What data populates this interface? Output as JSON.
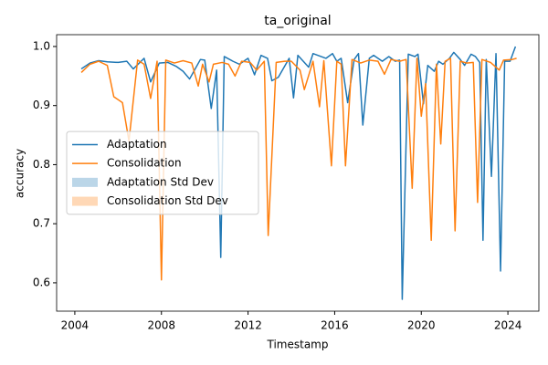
{
  "chart_data": {
    "type": "line",
    "title": "ta_original",
    "x_label": "Timestamp",
    "y_label": "accuracy",
    "xlim": [
      2003.16,
      2025.43
    ],
    "ylim": [
      0.552,
      1.02
    ],
    "xticks": [
      2004,
      2008,
      2012,
      2016,
      2020,
      2024
    ],
    "yticks": [
      0.6,
      0.7,
      0.8,
      0.9,
      {
        "value": 1,
        "label": "1.0"
      }
    ],
    "legend": "center left",
    "series": [
      {
        "name": "Adaptation",
        "color": "#1f77b4",
        "x": [
          2004.3,
          2004.7,
          2005.1,
          2005.5,
          2006.0,
          2006.4,
          2006.7,
          2007.2,
          2007.5,
          2007.9,
          2008.3,
          2008.7,
          2009.0,
          2009.3,
          2009.8,
          2010.0,
          2010.3,
          2010.55,
          2010.74,
          2010.9,
          2011.3,
          2011.6,
          2012.0,
          2012.3,
          2012.6,
          2012.9,
          2013.1,
          2013.4,
          2013.9,
          2014.1,
          2014.3,
          2014.8,
          2015.0,
          2015.6,
          2015.9,
          2016.1,
          2016.3,
          2016.6,
          2016.9,
          2017.1,
          2017.3,
          2017.6,
          2017.8,
          2018.2,
          2018.5,
          2018.8,
          2019.0,
          2019.12,
          2019.4,
          2019.7,
          2019.85,
          2020.1,
          2020.3,
          2020.6,
          2020.8,
          2021.0,
          2021.3,
          2021.5,
          2021.8,
          2022.0,
          2022.3,
          2022.5,
          2022.7,
          2022.85,
          2023.0,
          2023.24,
          2023.45,
          2023.66,
          2023.85,
          2024.1,
          2024.35
        ],
        "values": [
          0.962,
          0.972,
          0.976,
          0.974,
          0.973,
          0.975,
          0.962,
          0.98,
          0.94,
          0.972,
          0.973,
          0.966,
          0.958,
          0.945,
          0.978,
          0.977,
          0.895,
          0.96,
          0.643,
          0.983,
          0.975,
          0.97,
          0.98,
          0.952,
          0.985,
          0.98,
          0.942,
          0.948,
          0.98,
          0.913,
          0.985,
          0.965,
          0.988,
          0.98,
          0.988,
          0.975,
          0.98,
          0.905,
          0.978,
          0.988,
          0.867,
          0.98,
          0.985,
          0.975,
          0.983,
          0.975,
          0.977,
          0.572,
          0.987,
          0.983,
          0.987,
          0.903,
          0.968,
          0.958,
          0.975,
          0.97,
          0.98,
          0.99,
          0.978,
          0.968,
          0.987,
          0.983,
          0.973,
          0.672,
          0.978,
          0.78,
          0.988,
          0.62,
          0.975,
          0.975,
          1.0
        ]
      },
      {
        "name": "Consolidation",
        "color": "#ff7f0e",
        "x": [
          2004.3,
          2004.7,
          2005.1,
          2005.5,
          2005.8,
          2006.2,
          2006.5,
          2006.9,
          2007.2,
          2007.5,
          2007.8,
          2008.0,
          2008.2,
          2008.6,
          2009.0,
          2009.4,
          2009.7,
          2009.9,
          2010.2,
          2010.4,
          2010.8,
          2011.1,
          2011.4,
          2011.7,
          2012.1,
          2012.4,
          2012.75,
          2012.93,
          2013.3,
          2013.7,
          2014.0,
          2014.4,
          2014.6,
          2015.0,
          2015.3,
          2015.5,
          2015.85,
          2016.1,
          2016.3,
          2016.5,
          2016.8,
          2017.2,
          2017.6,
          2018.0,
          2018.3,
          2018.6,
          2019.0,
          2019.3,
          2019.58,
          2019.8,
          2020.0,
          2020.2,
          2020.46,
          2020.7,
          2020.9,
          2021.1,
          2021.35,
          2021.56,
          2021.8,
          2022.1,
          2022.4,
          2022.6,
          2022.8,
          2023.2,
          2023.6,
          2023.8,
          2024.2,
          2024.4
        ],
        "values": [
          0.956,
          0.97,
          0.975,
          0.968,
          0.915,
          0.905,
          0.84,
          0.977,
          0.97,
          0.912,
          0.975,
          0.605,
          0.977,
          0.972,
          0.976,
          0.972,
          0.933,
          0.97,
          0.94,
          0.97,
          0.973,
          0.97,
          0.95,
          0.975,
          0.973,
          0.96,
          0.975,
          0.68,
          0.973,
          0.975,
          0.975,
          0.96,
          0.927,
          0.975,
          0.898,
          0.976,
          0.798,
          0.975,
          0.97,
          0.798,
          0.978,
          0.972,
          0.977,
          0.975,
          0.953,
          0.978,
          0.975,
          0.978,
          0.76,
          0.98,
          0.882,
          0.937,
          0.672,
          0.97,
          0.835,
          0.975,
          0.98,
          0.688,
          0.975,
          0.972,
          0.973,
          0.736,
          0.978,
          0.973,
          0.96,
          0.977,
          0.978,
          0.98
        ]
      }
    ],
    "bands": [
      {
        "name": "Adaptation Std Dev",
        "color": "#1f77b4",
        "alpha": 0.3
      },
      {
        "name": "Consolidation Std Dev",
        "color": "#ff7f0e",
        "alpha": 0.3
      }
    ]
  }
}
